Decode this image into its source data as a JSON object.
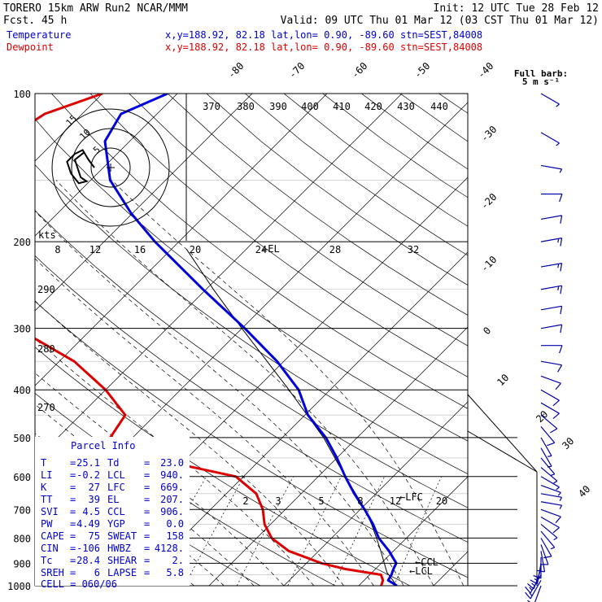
{
  "header": {
    "model": "TORERO  15km ARW   Run2    NCAR/MMM",
    "init": "Init: 12 UTC Tue 28 Feb 12",
    "fcst": "Fcst.   45 h",
    "valid": "Valid: 09 UTC Thu 01 Mar 12 (03 CST Thu 01 Mar 12)",
    "temp_label": "Temperature",
    "temp_info": "x,y=188.92, 82.18   lat,lon=  0.90, -89.60  stn=SEST,84008",
    "dew_label": "Dewpoint",
    "dew_info": "x,y=188.92, 82.18   lat,lon=  0.90, -89.60  stn=SEST,84008",
    "barb_note1": "Full barb:",
    "barb_note2": "5 m s⁻¹"
  },
  "colors": {
    "temperature": "#0000dd",
    "dewpoint": "#dd0000",
    "parcel": "#000000"
  },
  "chart_data": {
    "type": "line",
    "title": "Skew-T log-p sounding",
    "ylim": [
      1000,
      100
    ],
    "pressure_ticks": [
      "100",
      "200",
      "300",
      "400",
      "500",
      "600",
      "700",
      "800",
      "900",
      "1000"
    ],
    "isotherm_labels": [
      "-80",
      "-70",
      "-60",
      "-50",
      "-40",
      "-30",
      "-20",
      "-10",
      "0",
      "10",
      "20",
      "30",
      "40"
    ],
    "theta_e_labels": [
      "370",
      "380",
      "390",
      "400",
      "410",
      "420",
      "430",
      "440"
    ],
    "theta_labels": [
      "290",
      "280",
      "270"
    ],
    "mixing_ratio_labels": [
      "2",
      "3",
      "5",
      "8",
      "12",
      "20"
    ],
    "hodograph_labels": {
      "units": "kts",
      "speeds": [
        "8",
        "12",
        "16",
        "20",
        "24",
        "28",
        "32"
      ],
      "rings": [
        "5",
        "10",
        "15"
      ]
    },
    "levels": {
      "lfc": "LFC",
      "el": "EL",
      "ccl": "CCL",
      "lcl": "LCL"
    },
    "series": [
      {
        "name": "Temperature",
        "points": [
          [
            1000,
            25.1
          ],
          [
            975,
            23.2
          ],
          [
            950,
            22.9
          ],
          [
            925,
            22.4
          ],
          [
            900,
            22.0
          ],
          [
            850,
            19.4
          ],
          [
            800,
            16.3
          ],
          [
            750,
            13.7
          ],
          [
            700,
            10.6
          ],
          [
            650,
            7.1
          ],
          [
            600,
            3.6
          ],
          [
            550,
            0.0
          ],
          [
            500,
            -4.2
          ],
          [
            450,
            -9.6
          ],
          [
            400,
            -14.2
          ],
          [
            350,
            -20.9
          ],
          [
            300,
            -29.6
          ],
          [
            250,
            -40.4
          ],
          [
            200,
            -53.2
          ],
          [
            175,
            -60.2
          ],
          [
            150,
            -67.4
          ],
          [
            125,
            -73.3
          ],
          [
            110,
            -74.8
          ],
          [
            100,
            -71.3
          ]
        ]
      },
      {
        "name": "Dewpoint",
        "points": [
          [
            1000,
            23.0
          ],
          [
            975,
            22.5
          ],
          [
            950,
            21.5
          ],
          [
            925,
            16.0
          ],
          [
            900,
            12.0
          ],
          [
            850,
            6.0
          ],
          [
            800,
            2.0
          ],
          [
            750,
            -0.8
          ],
          [
            700,
            -3.0
          ],
          [
            650,
            -6.0
          ],
          [
            600,
            -11.0
          ],
          [
            550,
            -25.0
          ],
          [
            500,
            -33.0
          ],
          [
            450,
            -34.0
          ],
          [
            400,
            -40.0
          ],
          [
            350,
            -48.0
          ],
          [
            300,
            -60.0
          ],
          [
            250,
            -72.0
          ],
          [
            200,
            -82.0
          ],
          [
            150,
            -84.0
          ],
          [
            125,
            -87.0
          ],
          [
            110,
            -85.0
          ],
          [
            100,
            -80.0
          ]
        ]
      },
      {
        "name": "Parcel",
        "points": [
          [
            1000,
            25.1
          ],
          [
            940,
            22.0
          ],
          [
            900,
            20.4
          ],
          [
            850,
            18.3
          ],
          [
            800,
            16.0
          ],
          [
            750,
            13.5
          ],
          [
            700,
            10.6
          ],
          [
            669,
            8.6
          ],
          [
            600,
            3.6
          ],
          [
            500,
            -4.5
          ],
          [
            400,
            -15.5
          ],
          [
            300,
            -30.0
          ],
          [
            250,
            -39.0
          ],
          [
            207,
            -48.0
          ]
        ]
      }
    ],
    "wind_barbs": [
      {
        "p": 1000,
        "spd": 7,
        "dir": 200
      },
      {
        "p": 975,
        "spd": 8,
        "dir": 210
      },
      {
        "p": 950,
        "spd": 9,
        "dir": 210
      },
      {
        "p": 925,
        "spd": 9,
        "dir": 200
      },
      {
        "p": 900,
        "spd": 9,
        "dir": 190
      },
      {
        "p": 875,
        "spd": 7,
        "dir": 180
      },
      {
        "p": 850,
        "spd": 7,
        "dir": 170
      },
      {
        "p": 825,
        "spd": 6,
        "dir": 160
      },
      {
        "p": 800,
        "spd": 5,
        "dir": 150
      },
      {
        "p": 775,
        "spd": 4,
        "dir": 140
      },
      {
        "p": 750,
        "spd": 4,
        "dir": 130
      },
      {
        "p": 725,
        "spd": 5,
        "dir": 120
      },
      {
        "p": 700,
        "spd": 5,
        "dir": 110
      },
      {
        "p": 675,
        "spd": 4,
        "dir": 100
      },
      {
        "p": 650,
        "spd": 4,
        "dir": 100
      },
      {
        "p": 625,
        "spd": 4,
        "dir": 110
      },
      {
        "p": 600,
        "spd": 3,
        "dir": 120
      },
      {
        "p": 575,
        "spd": 3,
        "dir": 130
      },
      {
        "p": 550,
        "spd": 3,
        "dir": 140
      },
      {
        "p": 525,
        "spd": 4,
        "dir": 150
      },
      {
        "p": 500,
        "spd": 4,
        "dir": 150
      },
      {
        "p": 475,
        "spd": 5,
        "dir": 140
      },
      {
        "p": 450,
        "spd": 5,
        "dir": 130
      },
      {
        "p": 425,
        "spd": 6,
        "dir": 120
      },
      {
        "p": 400,
        "spd": 5,
        "dir": 120
      },
      {
        "p": 375,
        "spd": 5,
        "dir": 110
      },
      {
        "p": 350,
        "spd": 5,
        "dir": 100
      },
      {
        "p": 325,
        "spd": 6,
        "dir": 90
      },
      {
        "p": 300,
        "spd": 7,
        "dir": 80
      },
      {
        "p": 275,
        "spd": 7,
        "dir": 80
      },
      {
        "p": 250,
        "spd": 8,
        "dir": 80
      },
      {
        "p": 225,
        "spd": 9,
        "dir": 80
      },
      {
        "p": 200,
        "spd": 9,
        "dir": 80
      },
      {
        "p": 180,
        "spd": 7,
        "dir": 80
      },
      {
        "p": 160,
        "spd": 5,
        "dir": 90
      },
      {
        "p": 140,
        "spd": 4,
        "dir": 100
      },
      {
        "p": 120,
        "spd": 3,
        "dir": 120
      },
      {
        "p": 100,
        "spd": 4,
        "dir": 120
      }
    ],
    "hodograph": [
      [
        0,
        0
      ],
      [
        -3,
        -4
      ],
      [
        -6,
        -9
      ],
      [
        -10,
        -7
      ],
      [
        -14,
        -3
      ],
      [
        -12,
        3
      ],
      [
        -8,
        8
      ],
      [
        -4,
        7
      ],
      [
        -7,
        5
      ],
      [
        -10,
        -4
      ],
      [
        -5,
        -8
      ]
    ]
  },
  "parcel_info": {
    "title": "Parcel Info",
    "rows": [
      {
        "k1": "T",
        "v1": "25.1",
        "k2": "Td",
        "v2": "23.0"
      },
      {
        "k1": "LI",
        "v1": "-0.2",
        "k2": "LCL",
        "v2": "940."
      },
      {
        "k1": "K",
        "v1": "27",
        "k2": "LFC",
        "v2": "669."
      },
      {
        "k1": "TT",
        "v1": "39",
        "k2": "EL",
        "v2": "207."
      },
      {
        "k1": "SVI",
        "v1": "4.5",
        "k2": "CCL",
        "v2": "906."
      },
      {
        "k1": "PW",
        "v1": "4.49",
        "k2": "YGP",
        "v2": "0.0"
      },
      {
        "k1": "CAPE",
        "v1": "75",
        "k2": "SWEAT",
        "v2": "158"
      },
      {
        "k1": "CIN",
        "v1": "-106",
        "k2": "HWBZ",
        "v2": "4128."
      },
      {
        "k1": "Tc",
        "v1": "28.4",
        "k2": "SHEAR",
        "v2": "2."
      },
      {
        "k1": "SREH",
        "v1": "6",
        "k2": "LAPSE",
        "v2": "5.8"
      }
    ],
    "cell": "CELL = 060/06"
  }
}
